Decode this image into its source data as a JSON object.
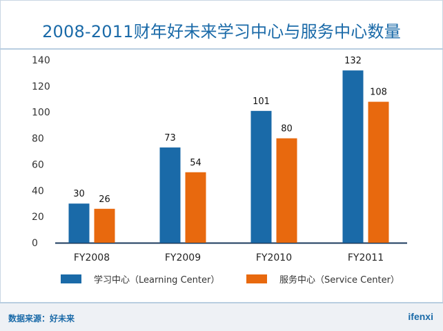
{
  "title": "2008-2011财年好未来学习中心与服务中心数量",
  "footer": {
    "source": "数据来源：好未来",
    "logo": "ifenxi"
  },
  "colors": {
    "title": "#1a6aa8",
    "series_1": "#1a6aa8",
    "series_2": "#e8690e",
    "axis": "#1a3a5c"
  },
  "chart_data": {
    "type": "bar",
    "title": "2008-2011财年好未来学习中心与服务中心数量",
    "categories": [
      "FY2008",
      "FY2009",
      "FY2010",
      "FY2011"
    ],
    "series": [
      {
        "name": "学习中心（Learning Center）",
        "values": [
          30,
          73,
          101,
          132
        ]
      },
      {
        "name": "服务中心（Service Center）",
        "values": [
          26,
          54,
          80,
          108
        ]
      }
    ],
    "yticks": [
      0,
      20,
      40,
      60,
      80,
      100,
      120,
      140
    ],
    "ylim": [
      0,
      140
    ],
    "grid": false,
    "legend": "bottom",
    "data_labels": true
  }
}
